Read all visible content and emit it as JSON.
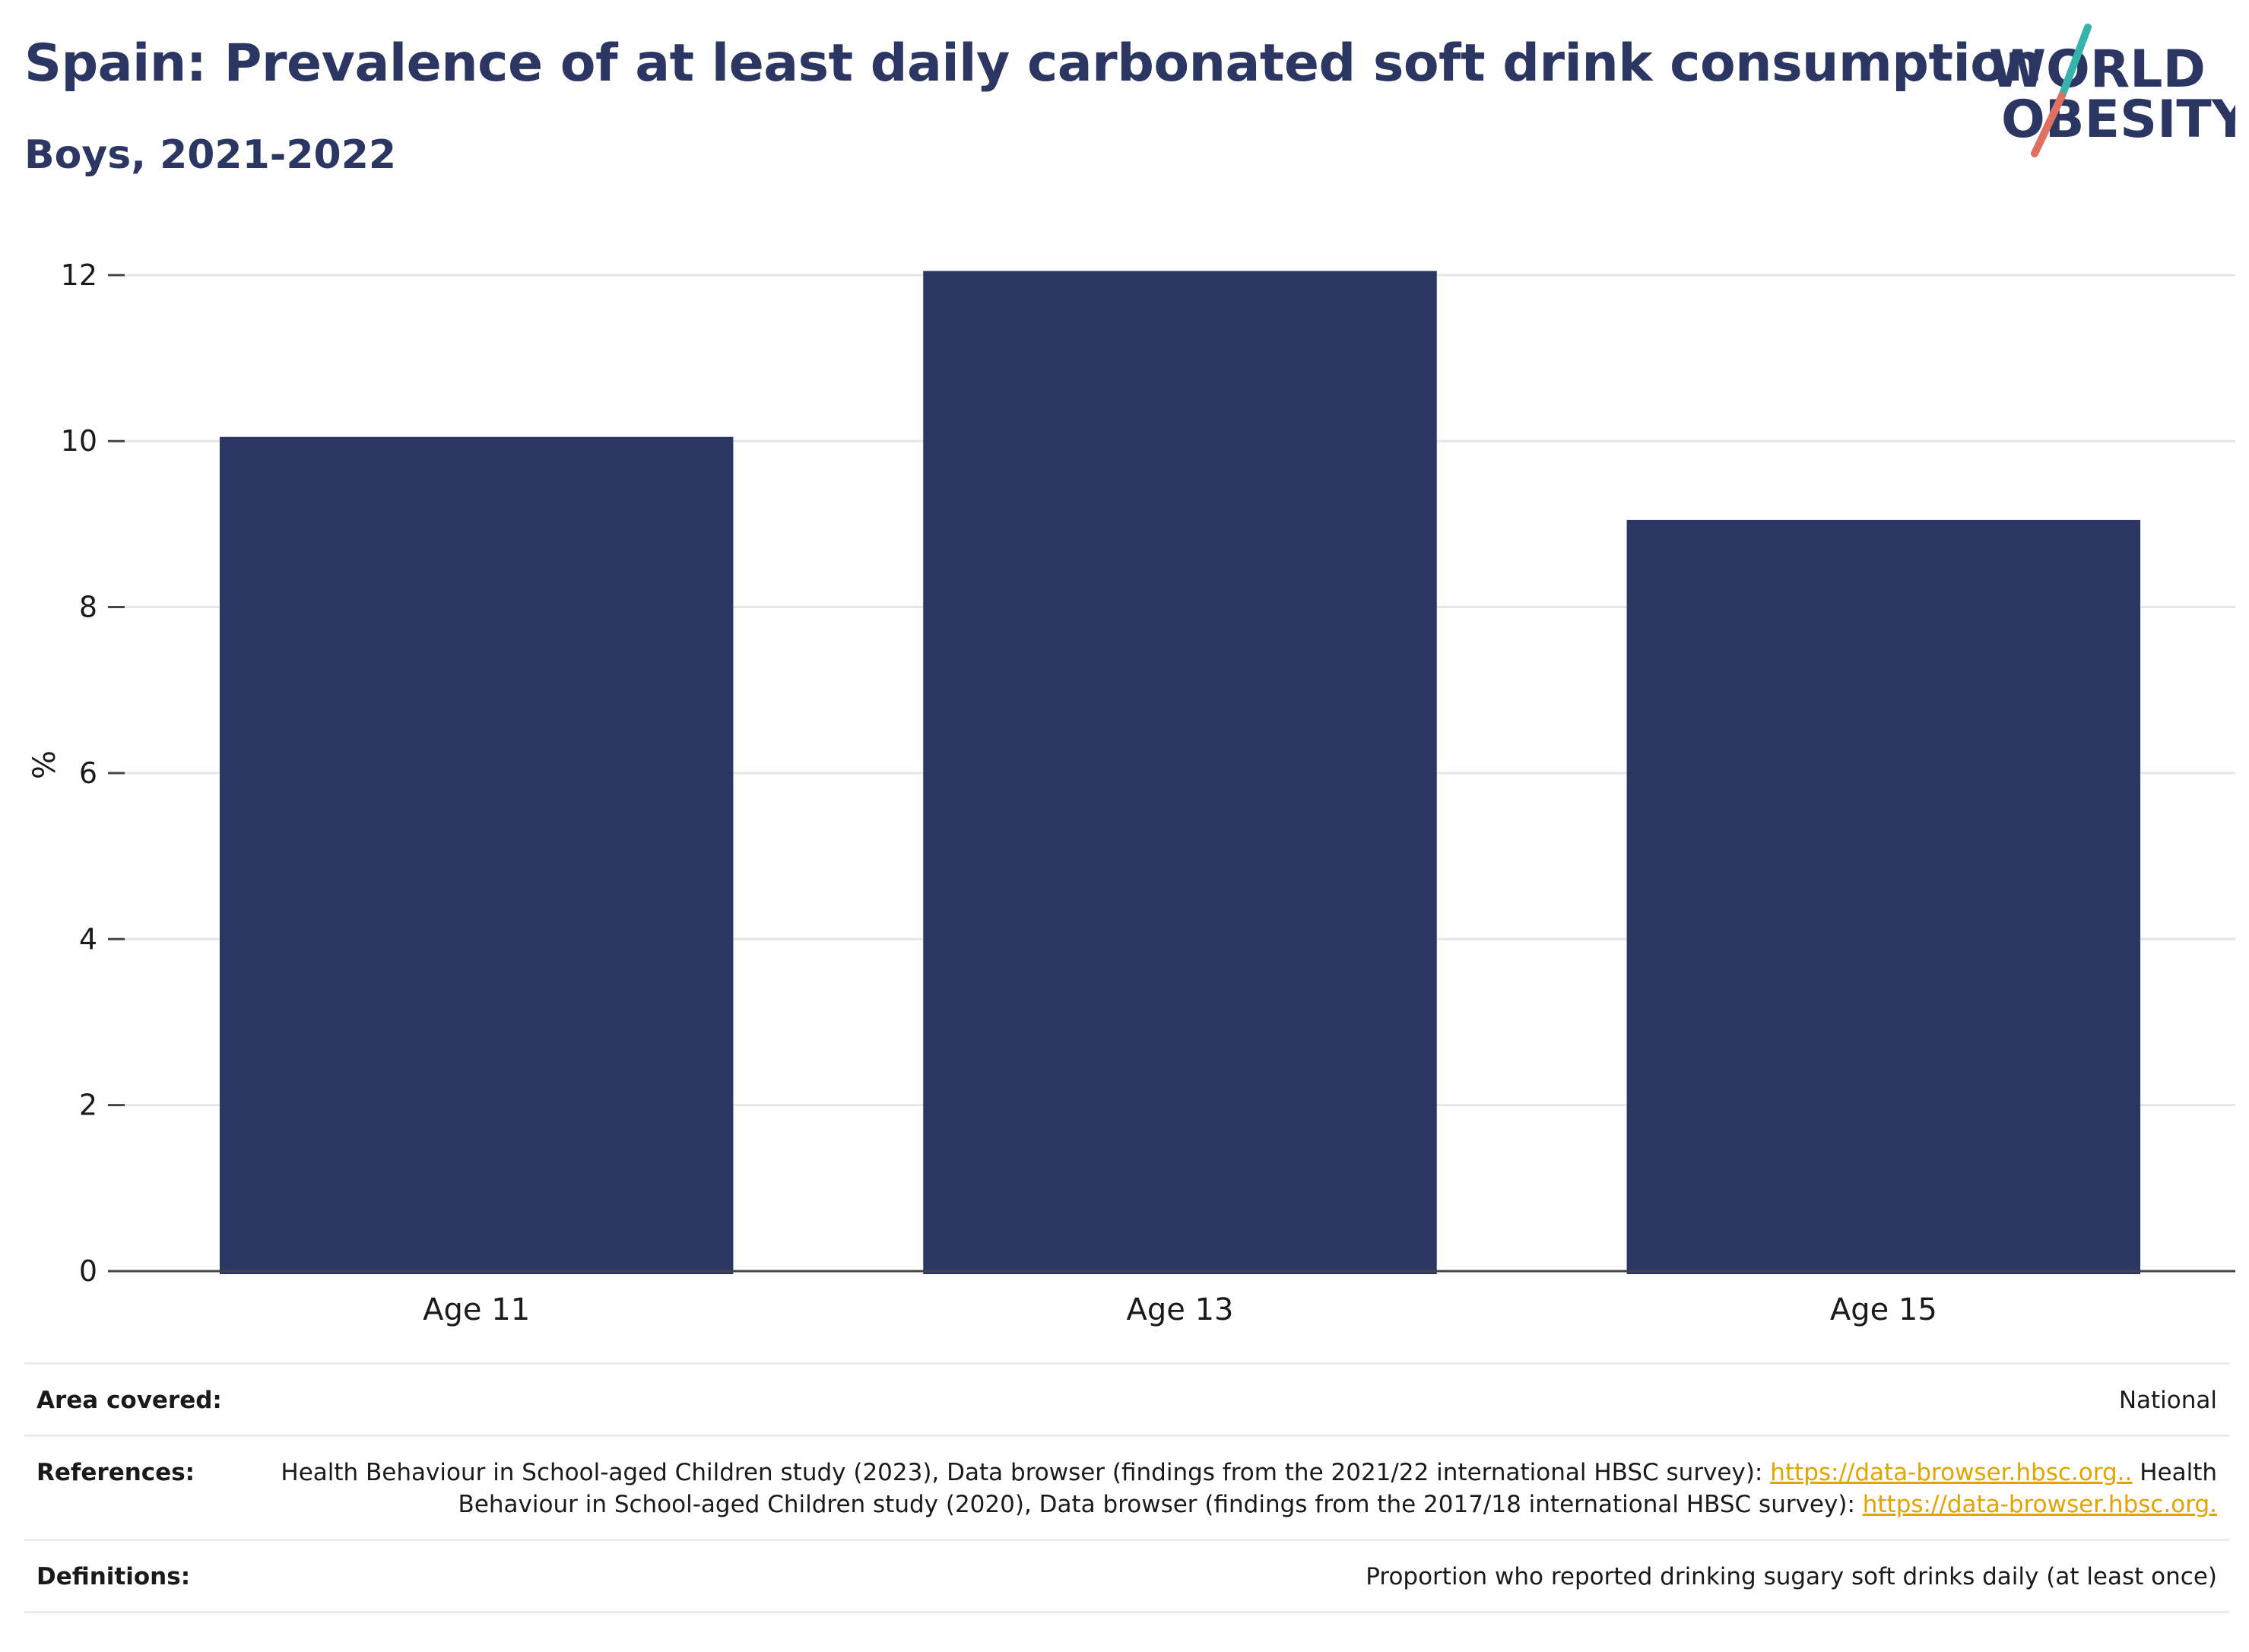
{
  "title": "Spain: Prevalence of at least daily carbonated soft drink consumption",
  "subtitle": "Boys, 2021-2022",
  "logo": {
    "line1": "WORLD",
    "line2": "OBESITY"
  },
  "colors": {
    "title": "#2b3762",
    "bar": "#2b3762",
    "grid": "#e6e6e6",
    "axis": "#444444",
    "link": "#e3a400",
    "logo_teal": "#35b3ac",
    "logo_coral": "#e0705f"
  },
  "chart_data": {
    "type": "bar",
    "categories": [
      "Age 11",
      "Age 13",
      "Age 15"
    ],
    "values": [
      10.05,
      12.05,
      9.05
    ],
    "ylabel": "%",
    "xlabel": "",
    "ylim": [
      0,
      12.2
    ],
    "yticks": [
      0,
      2,
      4,
      6,
      8,
      10,
      12
    ],
    "grid": true,
    "legend": "none"
  },
  "footer": {
    "area_label": "Area covered:",
    "area_value": "National",
    "references_label": "References:",
    "references_part1": "Health Behaviour in School-aged Children study (2023), Data browser (findings from the 2021/22 international HBSC survey): ",
    "references_link1": "https://data-browser.hbsc.org..",
    "references_part2": " Health Behaviour in School-aged Children study (2020), Data browser (findings from the 2017/18 international HBSC survey): ",
    "references_link2": "https://data-browser.hbsc.org.",
    "definitions_label": "Definitions:",
    "definitions_value": "Proportion who reported drinking sugary soft drinks daily (at least once)"
  }
}
